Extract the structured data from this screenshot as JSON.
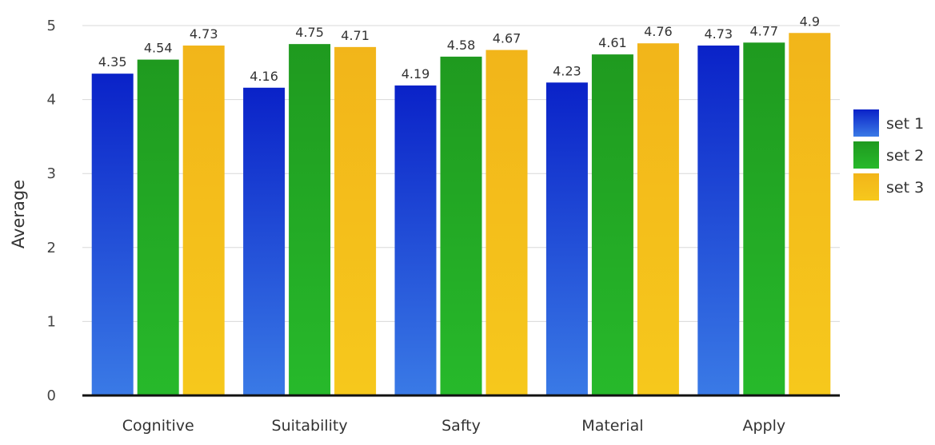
{
  "chart_data": {
    "type": "bar",
    "title": "",
    "xlabel": "",
    "ylabel": "Average",
    "ylim": [
      0,
      5
    ],
    "yticks": [
      0,
      1,
      2,
      3,
      4,
      5
    ],
    "grid": true,
    "legend_position": "right",
    "categories": [
      "Cognitive",
      "Suitability",
      "Safty",
      "Material",
      "Apply"
    ],
    "series": [
      {
        "name": "set 1",
        "values": [
          4.35,
          4.16,
          4.19,
          4.23,
          4.73
        ],
        "labels": [
          "4.35",
          "4.16",
          "4.19",
          "4.23",
          "4.73"
        ],
        "color_top": "#0a22c8",
        "color_bottom": "#3a7ae6"
      },
      {
        "name": "set 2",
        "values": [
          4.54,
          4.75,
          4.58,
          4.61,
          4.77
        ],
        "labels": [
          "4.54",
          "4.75",
          "4.58",
          "4.61",
          "4.77"
        ],
        "color_top": "#1f9a1f",
        "color_bottom": "#27b92b"
      },
      {
        "name": "set 3",
        "values": [
          4.73,
          4.71,
          4.67,
          4.76,
          4.9
        ],
        "labels": [
          "4.73",
          "4.71",
          "4.67",
          "4.76",
          "4.9"
        ],
        "color_top": "#f2b51a",
        "color_bottom": "#f6c81c"
      }
    ]
  }
}
